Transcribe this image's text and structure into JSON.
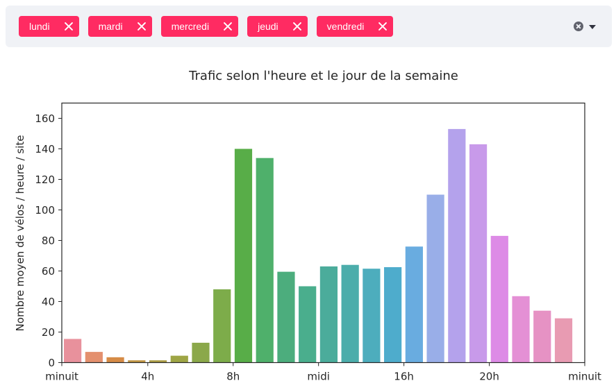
{
  "multiselect": {
    "tags": [
      {
        "label": "lundi"
      },
      {
        "label": "mardi"
      },
      {
        "label": "mercredi"
      },
      {
        "label": "jeudi"
      },
      {
        "label": "vendredi"
      }
    ],
    "tag_color": "#ff2b62"
  },
  "chart_data": {
    "type": "bar",
    "title": "Trafic selon l'heure et le jour de la semaine",
    "xlabel": "",
    "ylabel": "Nombre moyen de vélos / heure / site",
    "ylim": [
      0,
      170
    ],
    "yticks": [
      0,
      20,
      40,
      60,
      80,
      100,
      120,
      140,
      160
    ],
    "xticks": [
      {
        "hour": 0,
        "label": "minuit"
      },
      {
        "hour": 4,
        "label": "4h"
      },
      {
        "hour": 8,
        "label": "8h"
      },
      {
        "hour": 12,
        "label": "midi"
      },
      {
        "hour": 16,
        "label": "16h"
      },
      {
        "hour": 20,
        "label": "20h"
      },
      {
        "hour": 24,
        "label": "minuit"
      }
    ],
    "categories": [
      0,
      1,
      2,
      3,
      4,
      5,
      6,
      7,
      8,
      9,
      10,
      11,
      12,
      13,
      14,
      15,
      16,
      17,
      18,
      19,
      20,
      21,
      22,
      23
    ],
    "values": [
      15.5,
      7,
      3.5,
      1.5,
      1.5,
      4.5,
      13,
      48,
      140,
      134,
      59.5,
      50,
      63,
      64,
      61.5,
      62.5,
      76,
      110,
      153,
      143,
      83,
      43.5,
      34,
      29
    ],
    "colors": [
      "#e8919c",
      "#e4906e",
      "#d68b46",
      "#c19644",
      "#ab9d45",
      "#9ea545",
      "#8ba84a",
      "#7dac4a",
      "#58ad48",
      "#4fb06b",
      "#4cad7d",
      "#4aae8d",
      "#4bac9b",
      "#4cadab",
      "#4dadbd",
      "#4eaccc",
      "#69ace0",
      "#99aee8",
      "#b4a2ec",
      "#c89aea",
      "#dd8be6",
      "#e490d5",
      "#e692c4",
      "#e89bb2"
    ],
    "grid": false,
    "legend": "none"
  }
}
